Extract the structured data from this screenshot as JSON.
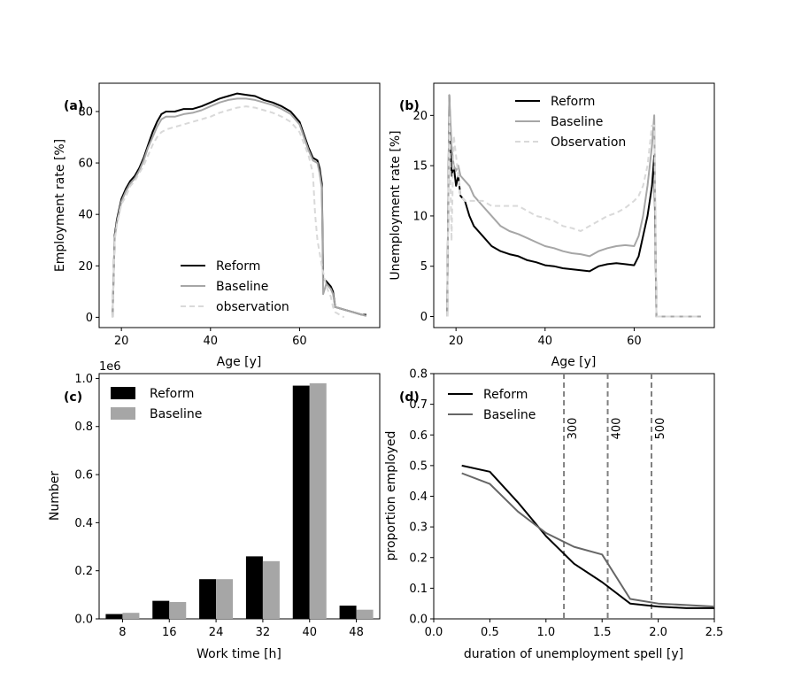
{
  "chart_data": [
    {
      "id": "a",
      "panel_label": "(a)",
      "type": "line",
      "xlabel": "Age [y]",
      "ylabel": "Employment rate [%]",
      "xlim": [
        15,
        78
      ],
      "ylim": [
        -4,
        91
      ],
      "xticks": [
        20,
        40,
        60
      ],
      "yticks": [
        0,
        20,
        40,
        60,
        80
      ],
      "legend_position": "lower center",
      "series": [
        {
          "name": "Reform",
          "color": "#000000",
          "style": "solid",
          "x": [
            18,
            18.5,
            19,
            20,
            21,
            22,
            23,
            24,
            25,
            26,
            27,
            28,
            29,
            30,
            32,
            34,
            36,
            38,
            40,
            42,
            44,
            46,
            48,
            50,
            52,
            54,
            56,
            58,
            60,
            62,
            63,
            64,
            64.5,
            65,
            65.3,
            66,
            67,
            67.5,
            68,
            70,
            72,
            74,
            75
          ],
          "y": [
            0,
            32,
            38,
            46,
            50,
            53,
            55,
            58,
            62,
            67,
            72,
            76,
            79,
            80,
            80,
            81,
            81,
            82,
            83.5,
            85,
            86,
            87,
            86.5,
            86,
            84.5,
            83.5,
            82,
            80,
            76,
            66,
            62,
            61,
            58,
            52,
            15,
            14,
            12,
            10,
            4,
            3,
            2,
            1,
            1
          ]
        },
        {
          "name": "Baseline",
          "color": "#a6a6a6",
          "style": "solid",
          "x": [
            18,
            18.5,
            19,
            20,
            21,
            22,
            23,
            24,
            25,
            26,
            27,
            28,
            29,
            30,
            32,
            34,
            36,
            38,
            40,
            42,
            44,
            46,
            48,
            50,
            52,
            54,
            56,
            58,
            60,
            62,
            63,
            64,
            64.5,
            65,
            65.3,
            66,
            67,
            67.5,
            68,
            70,
            72,
            74,
            75
          ],
          "y": [
            0,
            31,
            37,
            45,
            49,
            52,
            54,
            57,
            61,
            66,
            70,
            74,
            77,
            78,
            78,
            79,
            79.5,
            80.5,
            82,
            83.5,
            84.5,
            85,
            85,
            84.5,
            83.5,
            82.5,
            81,
            79,
            75,
            65,
            61,
            60,
            56,
            50,
            9,
            13,
            11,
            9,
            4,
            3,
            2,
            1,
            0.5
          ]
        },
        {
          "name": "observation",
          "color": "#d9d9d9",
          "style": "dashed",
          "x": [
            18,
            18.5,
            19,
            20,
            21,
            22,
            23,
            24,
            25,
            26,
            27,
            28,
            29,
            30,
            32,
            34,
            36,
            38,
            40,
            42,
            44,
            46,
            48,
            50,
            52,
            54,
            56,
            58,
            60,
            62,
            63,
            63.5,
            64,
            65,
            66,
            67,
            67.5,
            68,
            69,
            70
          ],
          "y": [
            0,
            30,
            36,
            44,
            47,
            51,
            53,
            56,
            59,
            63,
            67,
            70,
            72,
            73,
            74,
            75,
            76,
            77,
            78,
            79.5,
            80.5,
            81.5,
            82,
            81.5,
            80.5,
            79.5,
            78,
            76,
            72,
            63,
            56,
            40,
            30,
            20,
            12,
            8,
            4,
            2,
            1,
            0
          ]
        }
      ]
    },
    {
      "id": "b",
      "panel_label": "(b)",
      "type": "line",
      "xlabel": "Age [y]",
      "ylabel": "Unemployment rate [%]",
      "xlim": [
        15,
        78
      ],
      "ylim": [
        -1.1,
        23.2
      ],
      "xticks": [
        20,
        40,
        60
      ],
      "yticks": [
        0,
        5,
        10,
        15,
        20
      ],
      "legend_position": "top center",
      "series": [
        {
          "name": "Reform",
          "color": "#000000",
          "style": "solid",
          "x": [
            18,
            18.5,
            19,
            19.5,
            20,
            20.5,
            21,
            22,
            23,
            24,
            26,
            28,
            30,
            32,
            34,
            36,
            38,
            40,
            42,
            44,
            46,
            48,
            50,
            52,
            54,
            56,
            58,
            60,
            61,
            62,
            63,
            64,
            64.5,
            65,
            75
          ],
          "y": [
            0,
            22,
            14,
            15,
            13,
            14,
            12,
            11.5,
            10,
            9,
            8,
            7,
            6.5,
            6.2,
            6,
            5.6,
            5.4,
            5.1,
            5,
            4.8,
            4.7,
            4.6,
            4.5,
            5,
            5.2,
            5.3,
            5.2,
            5.1,
            6,
            8,
            10,
            13,
            16,
            0,
            0
          ]
        },
        {
          "name": "Baseline",
          "color": "#a6a6a6",
          "style": "solid",
          "x": [
            18,
            18.5,
            19,
            19.5,
            20,
            20.5,
            21,
            22,
            23,
            24,
            26,
            28,
            30,
            32,
            34,
            36,
            38,
            40,
            42,
            44,
            46,
            48,
            50,
            52,
            54,
            56,
            58,
            60,
            61,
            62,
            63,
            64,
            64.5,
            65,
            75
          ],
          "y": [
            0,
            22,
            17,
            15,
            14.5,
            15,
            14,
            13.5,
            13,
            12,
            11,
            10,
            9,
            8.5,
            8.2,
            7.8,
            7.4,
            7,
            6.8,
            6.5,
            6.3,
            6.2,
            6,
            6.5,
            6.8,
            7,
            7.1,
            7,
            8,
            10,
            13,
            17,
            20,
            0,
            0
          ]
        },
        {
          "name": "Observation",
          "color": "#d9d9d9",
          "style": "dashed",
          "x": [
            18,
            18.5,
            19,
            19.5,
            20,
            21,
            22,
            24,
            26,
            28,
            30,
            34,
            36,
            38,
            40,
            42,
            44,
            46,
            48,
            50,
            52,
            54,
            56,
            58,
            60,
            61,
            62,
            63,
            64,
            64.5,
            65,
            75
          ],
          "y": [
            0,
            20,
            7.5,
            18,
            16,
            12,
            11.5,
            11.5,
            11.5,
            11,
            11,
            11,
            10.5,
            10,
            9.8,
            9.5,
            9,
            8.8,
            8.5,
            9,
            9.5,
            10,
            10.3,
            10.8,
            11.5,
            12,
            13,
            15,
            19,
            19,
            0,
            0
          ]
        }
      ]
    },
    {
      "id": "c",
      "panel_label": "(c)",
      "type": "bar",
      "xlabel": "Work time [h]",
      "ylabel": "Number",
      "offset_label": "1e6",
      "ylim": [
        0,
        1.02
      ],
      "yticks": [
        "0.0",
        "0.2",
        "0.4",
        "0.6",
        "0.8",
        "1.0"
      ],
      "categories": [
        "8",
        "16",
        "24",
        "32",
        "40",
        "48"
      ],
      "legend_position": "top-left",
      "series": [
        {
          "name": "Reform",
          "color": "#000000",
          "values": [
            0.02,
            0.075,
            0.165,
            0.26,
            0.97,
            0.055
          ]
        },
        {
          "name": "Baseline",
          "color": "#a6a6a6",
          "values": [
            0.025,
            0.07,
            0.165,
            0.24,
            0.98,
            0.038
          ]
        }
      ]
    },
    {
      "id": "d",
      "panel_label": "(d)",
      "type": "line",
      "xlabel": "duration of unemployment spell [y]",
      "ylabel": "proportion employed",
      "xlim": [
        0,
        2.5
      ],
      "ylim": [
        0,
        0.8
      ],
      "xticks": [
        "0.0",
        "0.5",
        "1.0",
        "1.5",
        "2.0",
        "2.5"
      ],
      "yticks": [
        "0.0",
        "0.1",
        "0.2",
        "0.3",
        "0.4",
        "0.5",
        "0.6",
        "0.7",
        "0.8"
      ],
      "legend_position": "top-left",
      "series": [
        {
          "name": "Reform",
          "color": "#000000",
          "style": "solid",
          "x": [
            0.25,
            0.5,
            0.75,
            1.0,
            1.25,
            1.5,
            1.75,
            2.0,
            2.25,
            2.5
          ],
          "y": [
            0.5,
            0.48,
            0.38,
            0.27,
            0.18,
            0.12,
            0.05,
            0.04,
            0.035,
            0.035
          ]
        },
        {
          "name": "Baseline",
          "color": "#666666",
          "style": "solid",
          "x": [
            0.25,
            0.5,
            0.75,
            1.0,
            1.25,
            1.5,
            1.75,
            2.0,
            2.25,
            2.5
          ],
          "y": [
            0.475,
            0.44,
            0.35,
            0.28,
            0.235,
            0.21,
            0.065,
            0.05,
            0.045,
            0.04
          ]
        }
      ],
      "vlines": [
        {
          "x": 1.16,
          "label": "300"
        },
        {
          "x": 1.55,
          "label": "400"
        },
        {
          "x": 1.94,
          "label": "500"
        }
      ]
    }
  ]
}
